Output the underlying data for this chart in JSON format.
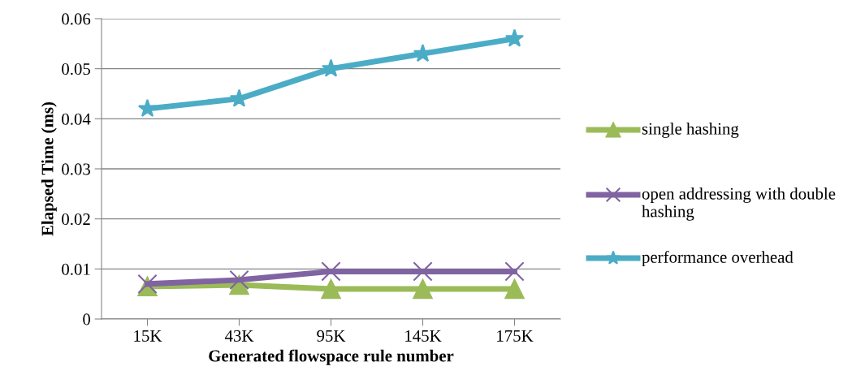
{
  "chart_data": {
    "type": "line",
    "xlabel": "Generated flowspace rule number",
    "ylabel": "Elapsed Time (ms)",
    "categories": [
      "15K",
      "43K",
      "95K",
      "145K",
      "175K"
    ],
    "series": [
      {
        "name": "single hashing",
        "color": "#9bbb59",
        "marker": "triangle",
        "values": [
          0.0065,
          0.0068,
          0.006,
          0.006,
          0.006
        ]
      },
      {
        "name": "open addressing with double hashing",
        "color": "#8064a2",
        "marker": "cross",
        "values": [
          0.007,
          0.0078,
          0.0095,
          0.0095,
          0.0095
        ]
      },
      {
        "name": "performance overhead",
        "color": "#4bacc6",
        "marker": "star",
        "values": [
          0.042,
          0.044,
          0.05,
          0.053,
          0.056
        ]
      }
    ],
    "ylim": [
      0,
      0.06
    ],
    "yticks": [
      0,
      0.01,
      0.02,
      0.03,
      0.04,
      0.05,
      0.06
    ],
    "grid": "y",
    "legend": "right",
    "line_style": "solid"
  }
}
